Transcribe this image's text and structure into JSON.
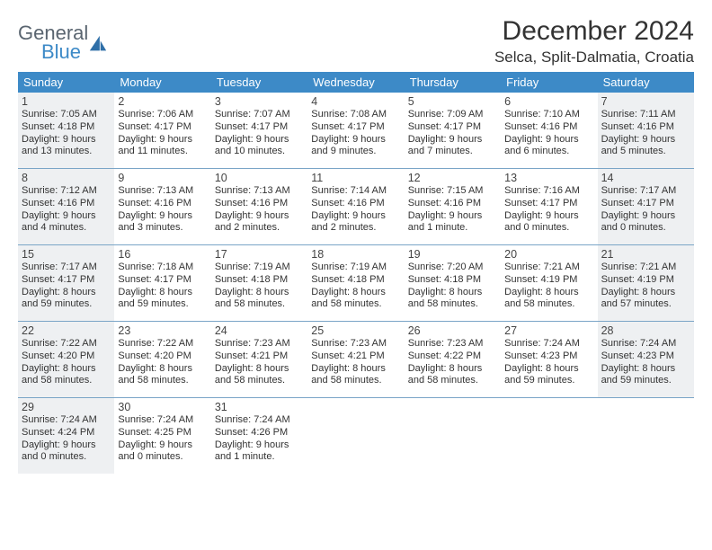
{
  "brand": {
    "text1": "General",
    "text2": "Blue",
    "logo_color": "#2f6fa8"
  },
  "title": "December 2024",
  "location": "Selca, Split-Dalmatia, Croatia",
  "colors": {
    "header_bg": "#3d8ac7",
    "shade_bg": "#eef0f2",
    "rule": "#7aa5c7",
    "text": "#333333"
  },
  "day_labels": [
    "Sunday",
    "Monday",
    "Tuesday",
    "Wednesday",
    "Thursday",
    "Friday",
    "Saturday"
  ],
  "weeks": [
    [
      {
        "n": "1",
        "shade": true,
        "sr": "Sunrise: 7:05 AM",
        "ss": "Sunset: 4:18 PM",
        "d1": "Daylight: 9 hours",
        "d2": "and 13 minutes."
      },
      {
        "n": "2",
        "shade": false,
        "sr": "Sunrise: 7:06 AM",
        "ss": "Sunset: 4:17 PM",
        "d1": "Daylight: 9 hours",
        "d2": "and 11 minutes."
      },
      {
        "n": "3",
        "shade": false,
        "sr": "Sunrise: 7:07 AM",
        "ss": "Sunset: 4:17 PM",
        "d1": "Daylight: 9 hours",
        "d2": "and 10 minutes."
      },
      {
        "n": "4",
        "shade": false,
        "sr": "Sunrise: 7:08 AM",
        "ss": "Sunset: 4:17 PM",
        "d1": "Daylight: 9 hours",
        "d2": "and 9 minutes."
      },
      {
        "n": "5",
        "shade": false,
        "sr": "Sunrise: 7:09 AM",
        "ss": "Sunset: 4:17 PM",
        "d1": "Daylight: 9 hours",
        "d2": "and 7 minutes."
      },
      {
        "n": "6",
        "shade": false,
        "sr": "Sunrise: 7:10 AM",
        "ss": "Sunset: 4:16 PM",
        "d1": "Daylight: 9 hours",
        "d2": "and 6 minutes."
      },
      {
        "n": "7",
        "shade": true,
        "sr": "Sunrise: 7:11 AM",
        "ss": "Sunset: 4:16 PM",
        "d1": "Daylight: 9 hours",
        "d2": "and 5 minutes."
      }
    ],
    [
      {
        "n": "8",
        "shade": true,
        "sr": "Sunrise: 7:12 AM",
        "ss": "Sunset: 4:16 PM",
        "d1": "Daylight: 9 hours",
        "d2": "and 4 minutes."
      },
      {
        "n": "9",
        "shade": false,
        "sr": "Sunrise: 7:13 AM",
        "ss": "Sunset: 4:16 PM",
        "d1": "Daylight: 9 hours",
        "d2": "and 3 minutes."
      },
      {
        "n": "10",
        "shade": false,
        "sr": "Sunrise: 7:13 AM",
        "ss": "Sunset: 4:16 PM",
        "d1": "Daylight: 9 hours",
        "d2": "and 2 minutes."
      },
      {
        "n": "11",
        "shade": false,
        "sr": "Sunrise: 7:14 AM",
        "ss": "Sunset: 4:16 PM",
        "d1": "Daylight: 9 hours",
        "d2": "and 2 minutes."
      },
      {
        "n": "12",
        "shade": false,
        "sr": "Sunrise: 7:15 AM",
        "ss": "Sunset: 4:16 PM",
        "d1": "Daylight: 9 hours",
        "d2": "and 1 minute."
      },
      {
        "n": "13",
        "shade": false,
        "sr": "Sunrise: 7:16 AM",
        "ss": "Sunset: 4:17 PM",
        "d1": "Daylight: 9 hours",
        "d2": "and 0 minutes."
      },
      {
        "n": "14",
        "shade": true,
        "sr": "Sunrise: 7:17 AM",
        "ss": "Sunset: 4:17 PM",
        "d1": "Daylight: 9 hours",
        "d2": "and 0 minutes."
      }
    ],
    [
      {
        "n": "15",
        "shade": true,
        "sr": "Sunrise: 7:17 AM",
        "ss": "Sunset: 4:17 PM",
        "d1": "Daylight: 8 hours",
        "d2": "and 59 minutes."
      },
      {
        "n": "16",
        "shade": false,
        "sr": "Sunrise: 7:18 AM",
        "ss": "Sunset: 4:17 PM",
        "d1": "Daylight: 8 hours",
        "d2": "and 59 minutes."
      },
      {
        "n": "17",
        "shade": false,
        "sr": "Sunrise: 7:19 AM",
        "ss": "Sunset: 4:18 PM",
        "d1": "Daylight: 8 hours",
        "d2": "and 58 minutes."
      },
      {
        "n": "18",
        "shade": false,
        "sr": "Sunrise: 7:19 AM",
        "ss": "Sunset: 4:18 PM",
        "d1": "Daylight: 8 hours",
        "d2": "and 58 minutes."
      },
      {
        "n": "19",
        "shade": false,
        "sr": "Sunrise: 7:20 AM",
        "ss": "Sunset: 4:18 PM",
        "d1": "Daylight: 8 hours",
        "d2": "and 58 minutes."
      },
      {
        "n": "20",
        "shade": false,
        "sr": "Sunrise: 7:21 AM",
        "ss": "Sunset: 4:19 PM",
        "d1": "Daylight: 8 hours",
        "d2": "and 58 minutes."
      },
      {
        "n": "21",
        "shade": true,
        "sr": "Sunrise: 7:21 AM",
        "ss": "Sunset: 4:19 PM",
        "d1": "Daylight: 8 hours",
        "d2": "and 57 minutes."
      }
    ],
    [
      {
        "n": "22",
        "shade": true,
        "sr": "Sunrise: 7:22 AM",
        "ss": "Sunset: 4:20 PM",
        "d1": "Daylight: 8 hours",
        "d2": "and 58 minutes."
      },
      {
        "n": "23",
        "shade": false,
        "sr": "Sunrise: 7:22 AM",
        "ss": "Sunset: 4:20 PM",
        "d1": "Daylight: 8 hours",
        "d2": "and 58 minutes."
      },
      {
        "n": "24",
        "shade": false,
        "sr": "Sunrise: 7:23 AM",
        "ss": "Sunset: 4:21 PM",
        "d1": "Daylight: 8 hours",
        "d2": "and 58 minutes."
      },
      {
        "n": "25",
        "shade": false,
        "sr": "Sunrise: 7:23 AM",
        "ss": "Sunset: 4:21 PM",
        "d1": "Daylight: 8 hours",
        "d2": "and 58 minutes."
      },
      {
        "n": "26",
        "shade": false,
        "sr": "Sunrise: 7:23 AM",
        "ss": "Sunset: 4:22 PM",
        "d1": "Daylight: 8 hours",
        "d2": "and 58 minutes."
      },
      {
        "n": "27",
        "shade": false,
        "sr": "Sunrise: 7:24 AM",
        "ss": "Sunset: 4:23 PM",
        "d1": "Daylight: 8 hours",
        "d2": "and 59 minutes."
      },
      {
        "n": "28",
        "shade": true,
        "sr": "Sunrise: 7:24 AM",
        "ss": "Sunset: 4:23 PM",
        "d1": "Daylight: 8 hours",
        "d2": "and 59 minutes."
      }
    ],
    [
      {
        "n": "29",
        "shade": true,
        "sr": "Sunrise: 7:24 AM",
        "ss": "Sunset: 4:24 PM",
        "d1": "Daylight: 9 hours",
        "d2": "and 0 minutes."
      },
      {
        "n": "30",
        "shade": false,
        "sr": "Sunrise: 7:24 AM",
        "ss": "Sunset: 4:25 PM",
        "d1": "Daylight: 9 hours",
        "d2": "and 0 minutes."
      },
      {
        "n": "31",
        "shade": false,
        "sr": "Sunrise: 7:24 AM",
        "ss": "Sunset: 4:26 PM",
        "d1": "Daylight: 9 hours",
        "d2": "and 1 minute."
      },
      null,
      null,
      null,
      null
    ]
  ]
}
